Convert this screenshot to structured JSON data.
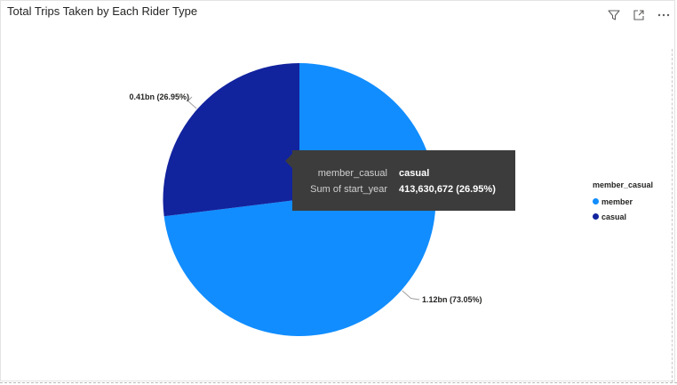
{
  "visual": {
    "title": "Total Trips Taken by Each Rider Type",
    "toolbar": {
      "icons": [
        "filter-icon",
        "focus-mode-icon",
        "more-options-icon"
      ]
    }
  },
  "chart_data": {
    "type": "pie",
    "title": "Total Trips Taken by Each Rider Type",
    "legend_title": "member_casual",
    "legend_placement": "right",
    "slices": [
      {
        "name": "member",
        "label": "1.12bn (73.05%)",
        "share": 0.7305,
        "color": "#118dff"
      },
      {
        "name": "casual",
        "label": "0.41bn (26.95%)",
        "value": 413630672,
        "share": 0.2695,
        "color": "#12239e"
      }
    ]
  },
  "tooltip": {
    "rows": [
      {
        "key": "member_casual",
        "value": "casual"
      },
      {
        "key": "Sum of start_year",
        "value": "413,630,672 (26.95%)"
      }
    ]
  }
}
